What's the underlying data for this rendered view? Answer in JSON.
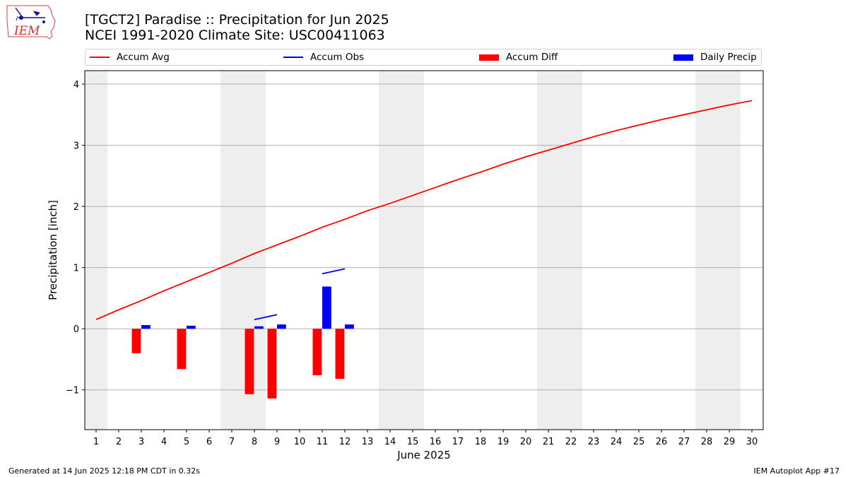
{
  "header": {
    "title_line1": "[TGCT2] Paradise :: Precipitation for Jun 2025",
    "title_line2": "NCEI 1991-2020 Climate Site: USC00411063",
    "logo_text": "IEM"
  },
  "footer": {
    "generated": "Generated at 14 Jun 2025 12:18 PM CDT in 0.32s",
    "app": "IEM Autoplot App #17"
  },
  "colors": {
    "accum_avg": "#ff0000",
    "accum_obs": "#0000ff",
    "accum_diff": "#ff0000",
    "daily_precip": "#0000ff",
    "weekend_band": "#eeeeee",
    "grid": "#b0b0b0"
  },
  "chart_data": {
    "type": "bar",
    "title": "[TGCT2] Paradise :: Precipitation for Jun 2025",
    "subtitle": "NCEI 1991-2020 Climate Site: USC00411063",
    "xlabel": "June 2025",
    "ylabel": "Precipitation [inch]",
    "x": [
      1,
      2,
      3,
      4,
      5,
      6,
      7,
      8,
      9,
      10,
      11,
      12,
      13,
      14,
      15,
      16,
      17,
      18,
      19,
      20,
      21,
      22,
      23,
      24,
      25,
      26,
      27,
      28,
      29,
      30
    ],
    "xlim": [
      0.5,
      30.5
    ],
    "ylim": [
      -1.65,
      4.22
    ],
    "yticks": [
      -1,
      0,
      1,
      2,
      3,
      4
    ],
    "yticklabels": [
      "−1",
      "0",
      "1",
      "2",
      "3",
      "4"
    ],
    "grid": "horizontal",
    "legend_position": "top",
    "weekend_bands": [
      [
        0.5,
        1.5
      ],
      [
        6.5,
        8.5
      ],
      [
        13.5,
        15.5
      ],
      [
        20.5,
        22.5
      ],
      [
        27.5,
        29.5
      ]
    ],
    "series": [
      {
        "name": "Accum Avg",
        "kind": "line",
        "x": [
          1,
          2,
          3,
          4,
          5,
          6,
          7,
          8,
          9,
          10,
          11,
          12,
          13,
          14,
          15,
          16,
          17,
          18,
          19,
          20,
          21,
          22,
          23,
          24,
          25,
          26,
          27,
          28,
          29,
          30
        ],
        "values": [
          0.15,
          0.31,
          0.46,
          0.62,
          0.77,
          0.92,
          1.07,
          1.23,
          1.37,
          1.51,
          1.66,
          1.79,
          1.93,
          2.05,
          2.18,
          2.31,
          2.44,
          2.56,
          2.69,
          2.81,
          2.92,
          3.03,
          3.14,
          3.24,
          3.33,
          3.42,
          3.5,
          3.58,
          3.66,
          3.73
        ]
      },
      {
        "name": "Accum Obs",
        "kind": "line",
        "segments": [
          {
            "x": [
              8,
              9
            ],
            "values": [
              0.15,
              0.23
            ]
          },
          {
            "x": [
              11,
              12
            ],
            "values": [
              0.9,
              0.98
            ]
          }
        ]
      },
      {
        "name": "Accum Diff",
        "kind": "bar",
        "x": [
          3,
          5,
          8,
          9,
          11,
          12
        ],
        "values": [
          -0.4,
          -0.66,
          -1.07,
          -1.14,
          -0.76,
          -0.82
        ]
      },
      {
        "name": "Daily Precip",
        "kind": "bar",
        "x": [
          3,
          5,
          8,
          9,
          11,
          12
        ],
        "values": [
          0.06,
          0.05,
          0.04,
          0.07,
          0.69,
          0.07
        ]
      }
    ]
  }
}
